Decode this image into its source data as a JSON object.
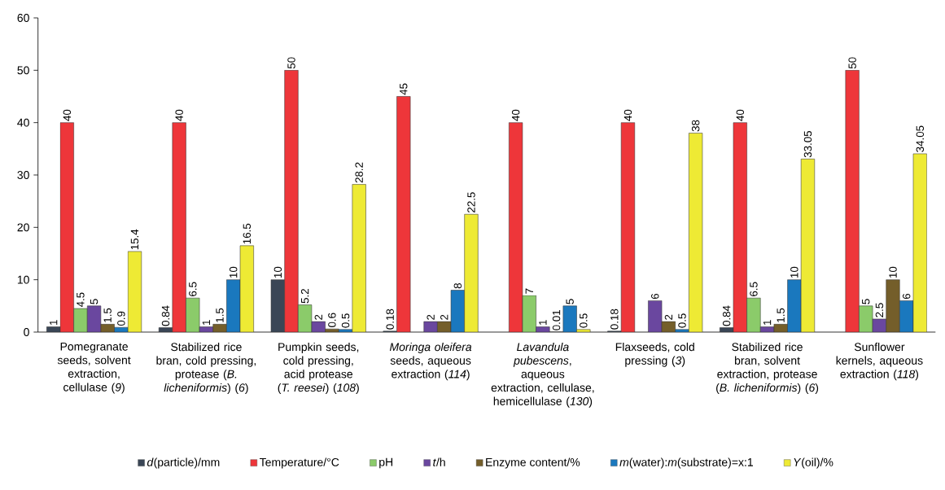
{
  "chart_data": {
    "type": "bar",
    "categories": [
      "Pomegranate seeds, solvent extraction, cellulase (*9*)",
      "Stabilized rice bran, cold pressing, protease (*B. licheniformis*) (*6*)",
      "Pumpkin seeds, cold pressing, acid protease (*T. reesei*) (*108*)",
      "*Moringa oleifera* seeds, aqueous extraction (*114*)",
      "*Lavandula pubescens*, aqueous extraction, cellulase, hemicellulase (*130*)",
      "Flaxseeds, cold pressing (*3*)",
      "Stabilized rice bran, solvent extraction, protease (*B. licheniformis*) (*6*)",
      "Sunflower kernels, aqueous extraction (*118*)"
    ],
    "series": [
      {
        "name": "*d*(particle)/mm",
        "color": "#3a4656",
        "values": [
          1,
          0.84,
          10,
          0.18,
          null,
          0.18,
          0.84,
          null
        ],
        "value_labels": [
          "1",
          "0.84",
          "10",
          "0.18",
          null,
          "0.18",
          "0.84",
          null
        ]
      },
      {
        "name": "Temperature/°C",
        "color": "#ee363a",
        "values": [
          40,
          40,
          50,
          45,
          40,
          40,
          40,
          50
        ],
        "value_labels": [
          "40",
          "40",
          "50",
          "45",
          "40",
          "40",
          "40",
          "50"
        ]
      },
      {
        "name": "pH",
        "color": "#8bcb6a",
        "values": [
          4.5,
          6.5,
          5.2,
          null,
          7,
          null,
          6.5,
          5
        ],
        "value_labels": [
          "4.5",
          "6.5",
          "5.2",
          null,
          "7",
          null,
          "6.5",
          "5"
        ]
      },
      {
        "name": "*t*/h",
        "color": "#6a479f",
        "values": [
          5,
          1,
          2,
          2,
          1,
          6,
          1,
          2.5
        ],
        "value_labels": [
          "5",
          "1",
          "2",
          "2",
          "1",
          "6",
          "1",
          "2.5"
        ]
      },
      {
        "name": "Enzyme content/%",
        "color": "#745e2a",
        "values": [
          1.5,
          1.5,
          0.6,
          2,
          0.01,
          2,
          1.5,
          10
        ],
        "value_labels": [
          "1.5",
          "1.5",
          "0.6",
          "2",
          "0.01",
          "2",
          "1.5",
          "10"
        ]
      },
      {
        "name": "*m*(water):*m*(substrate)=x:1",
        "color": "#1a78be",
        "values": [
          0.9,
          10,
          0.5,
          8,
          5,
          0.5,
          10,
          6
        ],
        "value_labels": [
          "0.9",
          "10",
          "0.5",
          "8",
          "5",
          "0.5",
          "10",
          "6"
        ]
      },
      {
        "name": "*Y*(oil)/%",
        "color": "#eeea34",
        "values": [
          15.4,
          16.5,
          28.2,
          22.5,
          0.5,
          38,
          33.05,
          34.05
        ],
        "value_labels": [
          "15.4",
          "16.5",
          "28.2",
          "22.5",
          "0.5",
          "38",
          "33.05",
          "34.05"
        ]
      }
    ],
    "ylim": [
      0,
      60
    ],
    "yticks": [
      0,
      10,
      20,
      30,
      40,
      50,
      60
    ],
    "legend": "bottom"
  }
}
